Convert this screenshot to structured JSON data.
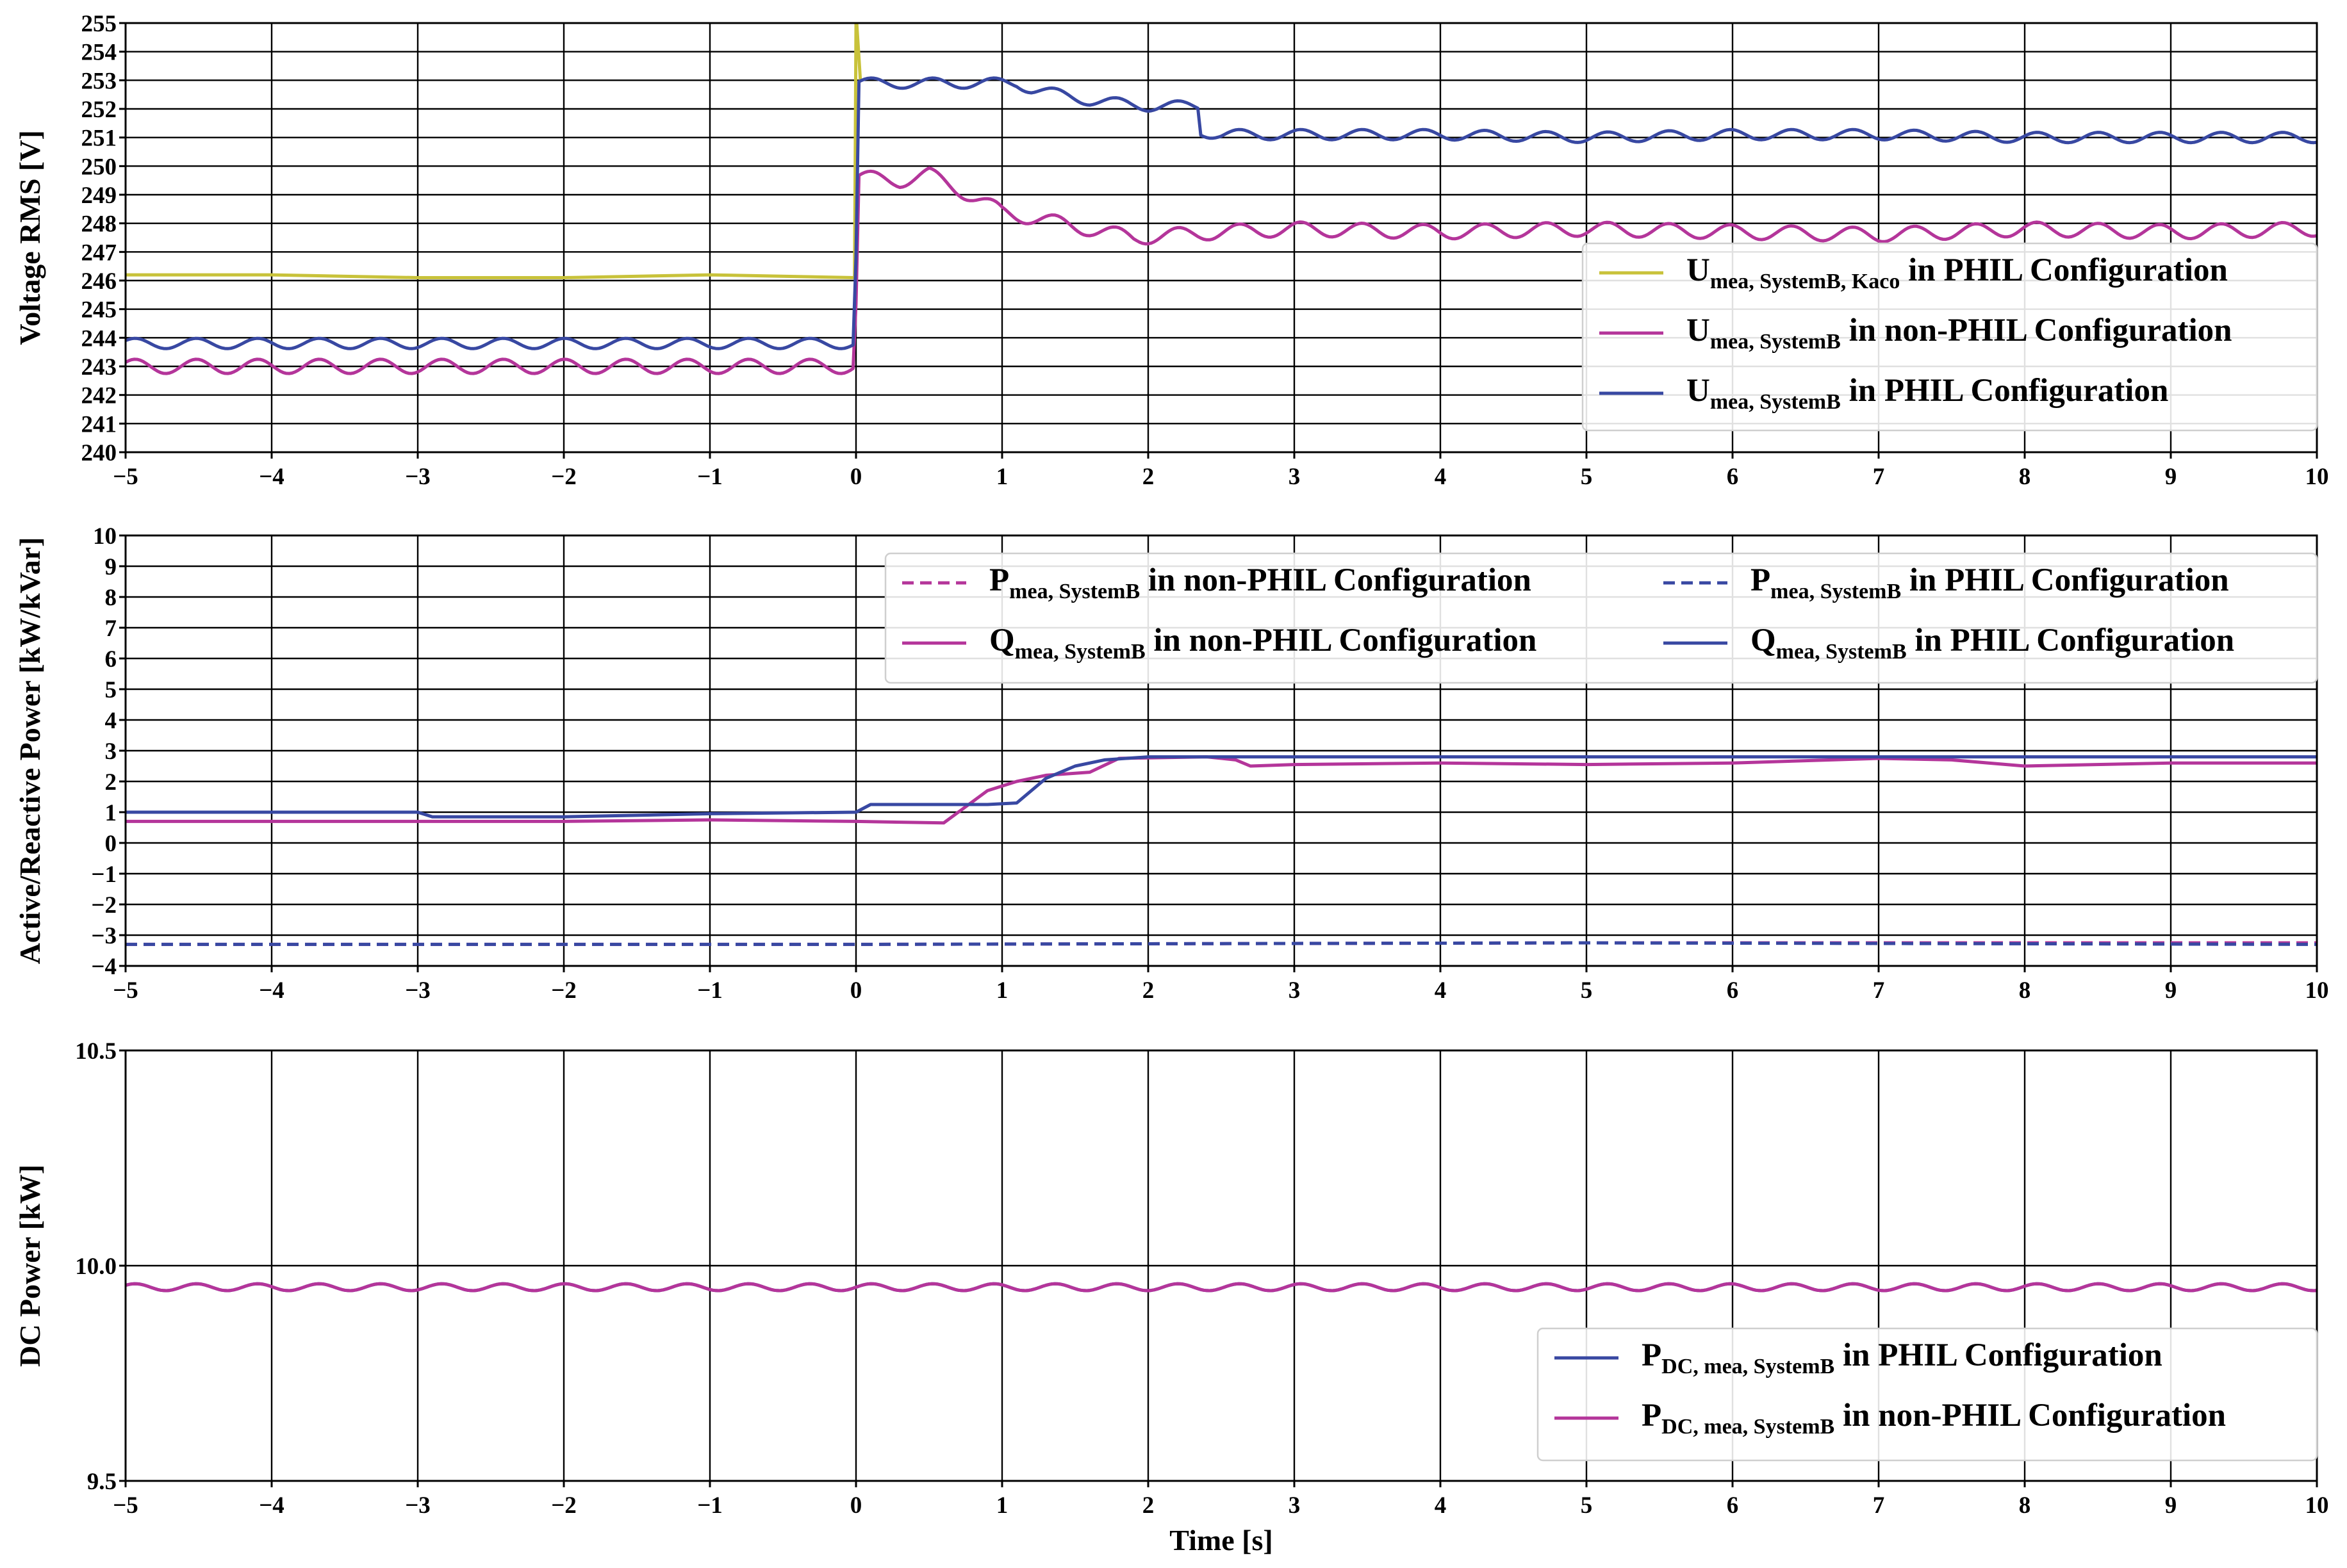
{
  "colors": {
    "yellow": "#c8c23a",
    "magenta": "#b4359a",
    "blue": "#3848a2"
  },
  "xlabel": "Time [s]",
  "chart_data": [
    {
      "type": "line",
      "ylabel": "Voltage RMS [V]",
      "xlim": [
        -5,
        10
      ],
      "ylim": [
        240,
        255
      ],
      "xticks": [
        "−5",
        "−4",
        "−3",
        "−2",
        "−1",
        "0",
        "1",
        "2",
        "3",
        "4",
        "5",
        "6",
        "7",
        "8",
        "9",
        "10"
      ],
      "yticks": [
        "240",
        "241",
        "242",
        "243",
        "244",
        "245",
        "246",
        "247",
        "248",
        "249",
        "250",
        "251",
        "252",
        "253",
        "254",
        "255"
      ],
      "grid": true,
      "legend_position": "right",
      "series": [
        {
          "name_main": "U",
          "name_sub": "mea, SystemB, Kaco",
          "name_rest": " in PHIL Configuration",
          "color": "yellow",
          "dash": "solid",
          "x": [
            -5,
            -4,
            -3,
            -2,
            -1,
            -0.01,
            0,
            0.005,
            0.03
          ],
          "y": [
            246.2,
            246.2,
            246.1,
            246.1,
            246.2,
            246.1,
            255,
            255,
            253
          ]
        },
        {
          "name_main": "U",
          "name_sub": "mea, SystemB",
          "name_rest": " in non-PHIL Configuration",
          "color": "magenta",
          "dash": "solid",
          "x": [
            -5,
            -0.01,
            0.02,
            0.3,
            0.5,
            0.7,
            1.0,
            1.4,
            1.9,
            2.5,
            3,
            4,
            5,
            6,
            7,
            8,
            9,
            10
          ],
          "y": [
            243.0,
            243.0,
            249.6,
            249.5,
            249.7,
            249.2,
            248.4,
            248.0,
            247.5,
            247.7,
            247.8,
            247.7,
            247.8,
            247.7,
            247.6,
            247.8,
            247.7,
            247.8
          ],
          "ripple": 0.25
        },
        {
          "name_main": "U",
          "name_sub": "mea, SystemB",
          "name_rest": " in PHIL Configuration",
          "color": "blue",
          "dash": "solid",
          "x": [
            -5,
            -0.01,
            0.02,
            1.1,
            1.2,
            1.6,
            2.0,
            2.35,
            2.36,
            2.5,
            3,
            4,
            5,
            6,
            7,
            8,
            9,
            10
          ],
          "y": [
            243.8,
            243.8,
            252.9,
            252.9,
            252.7,
            252.3,
            252.1,
            252.1,
            251.2,
            251.1,
            251.1,
            251.1,
            251.0,
            251.1,
            251.1,
            251.0,
            251.0,
            251.0
          ],
          "ripple": 0.18
        }
      ]
    },
    {
      "type": "line",
      "ylabel": "Active/Reactive Power [kW/kVar]",
      "xlim": [
        -5,
        10
      ],
      "ylim": [
        -4,
        10
      ],
      "xticks": [
        "−5",
        "−4",
        "−3",
        "−2",
        "−1",
        "0",
        "1",
        "2",
        "3",
        "4",
        "5",
        "6",
        "7",
        "8",
        "9",
        "10"
      ],
      "yticks": [
        "−4",
        "−3",
        "−2",
        "−1",
        "0",
        "1",
        "2",
        "3",
        "4",
        "5",
        "6",
        "7",
        "8",
        "9",
        "10"
      ],
      "grid": true,
      "legend_position": "top-right",
      "series": [
        {
          "name_main": "P",
          "name_sub": "mea, SystemB",
          "name_rest": " in non-PHIL Configuration",
          "color": "magenta",
          "dash": "dashed",
          "x": [
            -5,
            0,
            5,
            10
          ],
          "y": [
            -3.3,
            -3.3,
            -3.25,
            -3.25
          ]
        },
        {
          "name_main": "P",
          "name_sub": "mea, SystemB",
          "name_rest": " in PHIL Configuration",
          "color": "blue",
          "dash": "dashed",
          "x": [
            -5,
            0,
            5,
            10
          ],
          "y": [
            -3.3,
            -3.3,
            -3.25,
            -3.3
          ]
        },
        {
          "name_main": "Q",
          "name_sub": "mea, SystemB",
          "name_rest": " in non-PHIL Configuration",
          "color": "magenta",
          "dash": "solid",
          "x": [
            -5,
            -3,
            -2,
            -1,
            0,
            0.6,
            0.7,
            0.9,
            1.1,
            1.3,
            1.6,
            1.8,
            2.4,
            2.6,
            2.7,
            3,
            4,
            5,
            6,
            7,
            7.5,
            8,
            9,
            10
          ],
          "y": [
            0.7,
            0.7,
            0.7,
            0.75,
            0.7,
            0.65,
            1.0,
            1.7,
            2.0,
            2.2,
            2.3,
            2.75,
            2.8,
            2.7,
            2.5,
            2.55,
            2.6,
            2.55,
            2.6,
            2.75,
            2.7,
            2.5,
            2.6,
            2.6
          ]
        },
        {
          "name_main": "Q",
          "name_sub": "mea, SystemB",
          "name_rest": " in PHIL Configuration",
          "color": "blue",
          "dash": "solid",
          "x": [
            -5,
            -3,
            -2.9,
            -2,
            -1,
            0,
            0.1,
            0.9,
            1.1,
            1.3,
            1.5,
            1.7,
            2,
            3,
            4,
            5,
            6,
            7,
            8,
            9,
            10
          ],
          "y": [
            1.0,
            1.0,
            0.85,
            0.85,
            0.95,
            1.0,
            1.25,
            1.25,
            1.3,
            2.1,
            2.5,
            2.7,
            2.8,
            2.8,
            2.8,
            2.8,
            2.8,
            2.8,
            2.8,
            2.8,
            2.8
          ]
        }
      ]
    },
    {
      "type": "line",
      "ylabel": "DC Power [kW]",
      "xlim": [
        -5,
        10
      ],
      "ylim": [
        9.5,
        10.5
      ],
      "xticks": [
        "−5",
        "−4",
        "−3",
        "−2",
        "−1",
        "0",
        "1",
        "2",
        "3",
        "4",
        "5",
        "6",
        "7",
        "8",
        "9",
        "10"
      ],
      "yticks": [
        "9.5",
        "10.0",
        "10.5"
      ],
      "grid": true,
      "legend_position": "lower-right",
      "series": [
        {
          "name_main": "P",
          "name_sub": "DC, mea, SystemB",
          "name_rest": " in PHIL Configuration",
          "color": "blue",
          "dash": "solid",
          "x": [
            -5,
            10
          ],
          "y": [
            9.95,
            9.95
          ],
          "ripple": 0.008
        },
        {
          "name_main": "P",
          "name_sub": "DC, mea, SystemB",
          "name_rest": " in non-PHIL Configuration",
          "color": "magenta",
          "dash": "solid",
          "x": [
            -5,
            10
          ],
          "y": [
            9.95,
            9.95
          ],
          "ripple": 0.008
        }
      ]
    }
  ]
}
